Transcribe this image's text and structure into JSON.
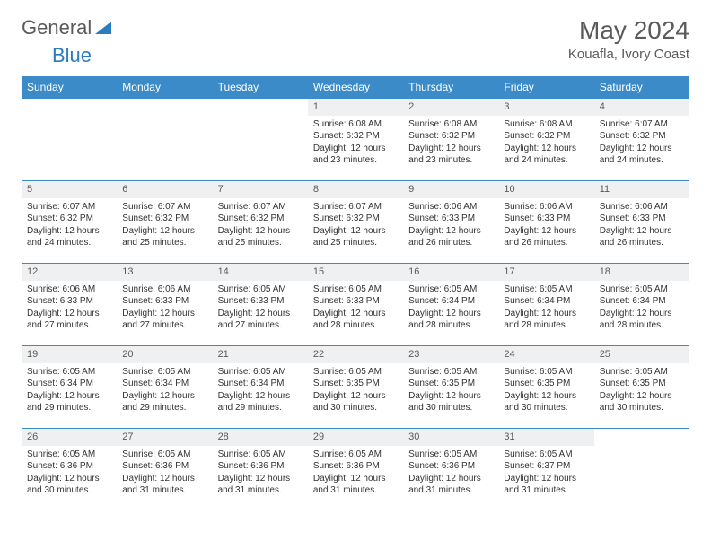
{
  "brand": {
    "name_a": "General",
    "name_b": "Blue"
  },
  "title": "May 2024",
  "location": "Kouafla, Ivory Coast",
  "colors": {
    "header_bg": "#3b8bc8",
    "header_text": "#ffffff",
    "row_border": "#3b8bc8",
    "daynum_bg": "#eef0f1",
    "text": "#333333",
    "muted": "#5a5a5a",
    "brand_blue": "#2b7bbf",
    "page_bg": "#ffffff"
  },
  "day_headers": [
    "Sunday",
    "Monday",
    "Tuesday",
    "Wednesday",
    "Thursday",
    "Friday",
    "Saturday"
  ],
  "weeks": [
    [
      {
        "n": "",
        "sr": "",
        "ss": "",
        "dl": "",
        "empty": true
      },
      {
        "n": "",
        "sr": "",
        "ss": "",
        "dl": "",
        "empty": true
      },
      {
        "n": "",
        "sr": "",
        "ss": "",
        "dl": "",
        "empty": true
      },
      {
        "n": "1",
        "sr": "Sunrise: 6:08 AM",
        "ss": "Sunset: 6:32 PM",
        "dl": "Daylight: 12 hours and 23 minutes."
      },
      {
        "n": "2",
        "sr": "Sunrise: 6:08 AM",
        "ss": "Sunset: 6:32 PM",
        "dl": "Daylight: 12 hours and 23 minutes."
      },
      {
        "n": "3",
        "sr": "Sunrise: 6:08 AM",
        "ss": "Sunset: 6:32 PM",
        "dl": "Daylight: 12 hours and 24 minutes."
      },
      {
        "n": "4",
        "sr": "Sunrise: 6:07 AM",
        "ss": "Sunset: 6:32 PM",
        "dl": "Daylight: 12 hours and 24 minutes."
      }
    ],
    [
      {
        "n": "5",
        "sr": "Sunrise: 6:07 AM",
        "ss": "Sunset: 6:32 PM",
        "dl": "Daylight: 12 hours and 24 minutes."
      },
      {
        "n": "6",
        "sr": "Sunrise: 6:07 AM",
        "ss": "Sunset: 6:32 PM",
        "dl": "Daylight: 12 hours and 25 minutes."
      },
      {
        "n": "7",
        "sr": "Sunrise: 6:07 AM",
        "ss": "Sunset: 6:32 PM",
        "dl": "Daylight: 12 hours and 25 minutes."
      },
      {
        "n": "8",
        "sr": "Sunrise: 6:07 AM",
        "ss": "Sunset: 6:32 PM",
        "dl": "Daylight: 12 hours and 25 minutes."
      },
      {
        "n": "9",
        "sr": "Sunrise: 6:06 AM",
        "ss": "Sunset: 6:33 PM",
        "dl": "Daylight: 12 hours and 26 minutes."
      },
      {
        "n": "10",
        "sr": "Sunrise: 6:06 AM",
        "ss": "Sunset: 6:33 PM",
        "dl": "Daylight: 12 hours and 26 minutes."
      },
      {
        "n": "11",
        "sr": "Sunrise: 6:06 AM",
        "ss": "Sunset: 6:33 PM",
        "dl": "Daylight: 12 hours and 26 minutes."
      }
    ],
    [
      {
        "n": "12",
        "sr": "Sunrise: 6:06 AM",
        "ss": "Sunset: 6:33 PM",
        "dl": "Daylight: 12 hours and 27 minutes."
      },
      {
        "n": "13",
        "sr": "Sunrise: 6:06 AM",
        "ss": "Sunset: 6:33 PM",
        "dl": "Daylight: 12 hours and 27 minutes."
      },
      {
        "n": "14",
        "sr": "Sunrise: 6:05 AM",
        "ss": "Sunset: 6:33 PM",
        "dl": "Daylight: 12 hours and 27 minutes."
      },
      {
        "n": "15",
        "sr": "Sunrise: 6:05 AM",
        "ss": "Sunset: 6:33 PM",
        "dl": "Daylight: 12 hours and 28 minutes."
      },
      {
        "n": "16",
        "sr": "Sunrise: 6:05 AM",
        "ss": "Sunset: 6:34 PM",
        "dl": "Daylight: 12 hours and 28 minutes."
      },
      {
        "n": "17",
        "sr": "Sunrise: 6:05 AM",
        "ss": "Sunset: 6:34 PM",
        "dl": "Daylight: 12 hours and 28 minutes."
      },
      {
        "n": "18",
        "sr": "Sunrise: 6:05 AM",
        "ss": "Sunset: 6:34 PM",
        "dl": "Daylight: 12 hours and 28 minutes."
      }
    ],
    [
      {
        "n": "19",
        "sr": "Sunrise: 6:05 AM",
        "ss": "Sunset: 6:34 PM",
        "dl": "Daylight: 12 hours and 29 minutes."
      },
      {
        "n": "20",
        "sr": "Sunrise: 6:05 AM",
        "ss": "Sunset: 6:34 PM",
        "dl": "Daylight: 12 hours and 29 minutes."
      },
      {
        "n": "21",
        "sr": "Sunrise: 6:05 AM",
        "ss": "Sunset: 6:34 PM",
        "dl": "Daylight: 12 hours and 29 minutes."
      },
      {
        "n": "22",
        "sr": "Sunrise: 6:05 AM",
        "ss": "Sunset: 6:35 PM",
        "dl": "Daylight: 12 hours and 30 minutes."
      },
      {
        "n": "23",
        "sr": "Sunrise: 6:05 AM",
        "ss": "Sunset: 6:35 PM",
        "dl": "Daylight: 12 hours and 30 minutes."
      },
      {
        "n": "24",
        "sr": "Sunrise: 6:05 AM",
        "ss": "Sunset: 6:35 PM",
        "dl": "Daylight: 12 hours and 30 minutes."
      },
      {
        "n": "25",
        "sr": "Sunrise: 6:05 AM",
        "ss": "Sunset: 6:35 PM",
        "dl": "Daylight: 12 hours and 30 minutes."
      }
    ],
    [
      {
        "n": "26",
        "sr": "Sunrise: 6:05 AM",
        "ss": "Sunset: 6:36 PM",
        "dl": "Daylight: 12 hours and 30 minutes."
      },
      {
        "n": "27",
        "sr": "Sunrise: 6:05 AM",
        "ss": "Sunset: 6:36 PM",
        "dl": "Daylight: 12 hours and 31 minutes."
      },
      {
        "n": "28",
        "sr": "Sunrise: 6:05 AM",
        "ss": "Sunset: 6:36 PM",
        "dl": "Daylight: 12 hours and 31 minutes."
      },
      {
        "n": "29",
        "sr": "Sunrise: 6:05 AM",
        "ss": "Sunset: 6:36 PM",
        "dl": "Daylight: 12 hours and 31 minutes."
      },
      {
        "n": "30",
        "sr": "Sunrise: 6:05 AM",
        "ss": "Sunset: 6:36 PM",
        "dl": "Daylight: 12 hours and 31 minutes."
      },
      {
        "n": "31",
        "sr": "Sunrise: 6:05 AM",
        "ss": "Sunset: 6:37 PM",
        "dl": "Daylight: 12 hours and 31 minutes."
      },
      {
        "n": "",
        "sr": "",
        "ss": "",
        "dl": "",
        "empty": true
      }
    ]
  ]
}
